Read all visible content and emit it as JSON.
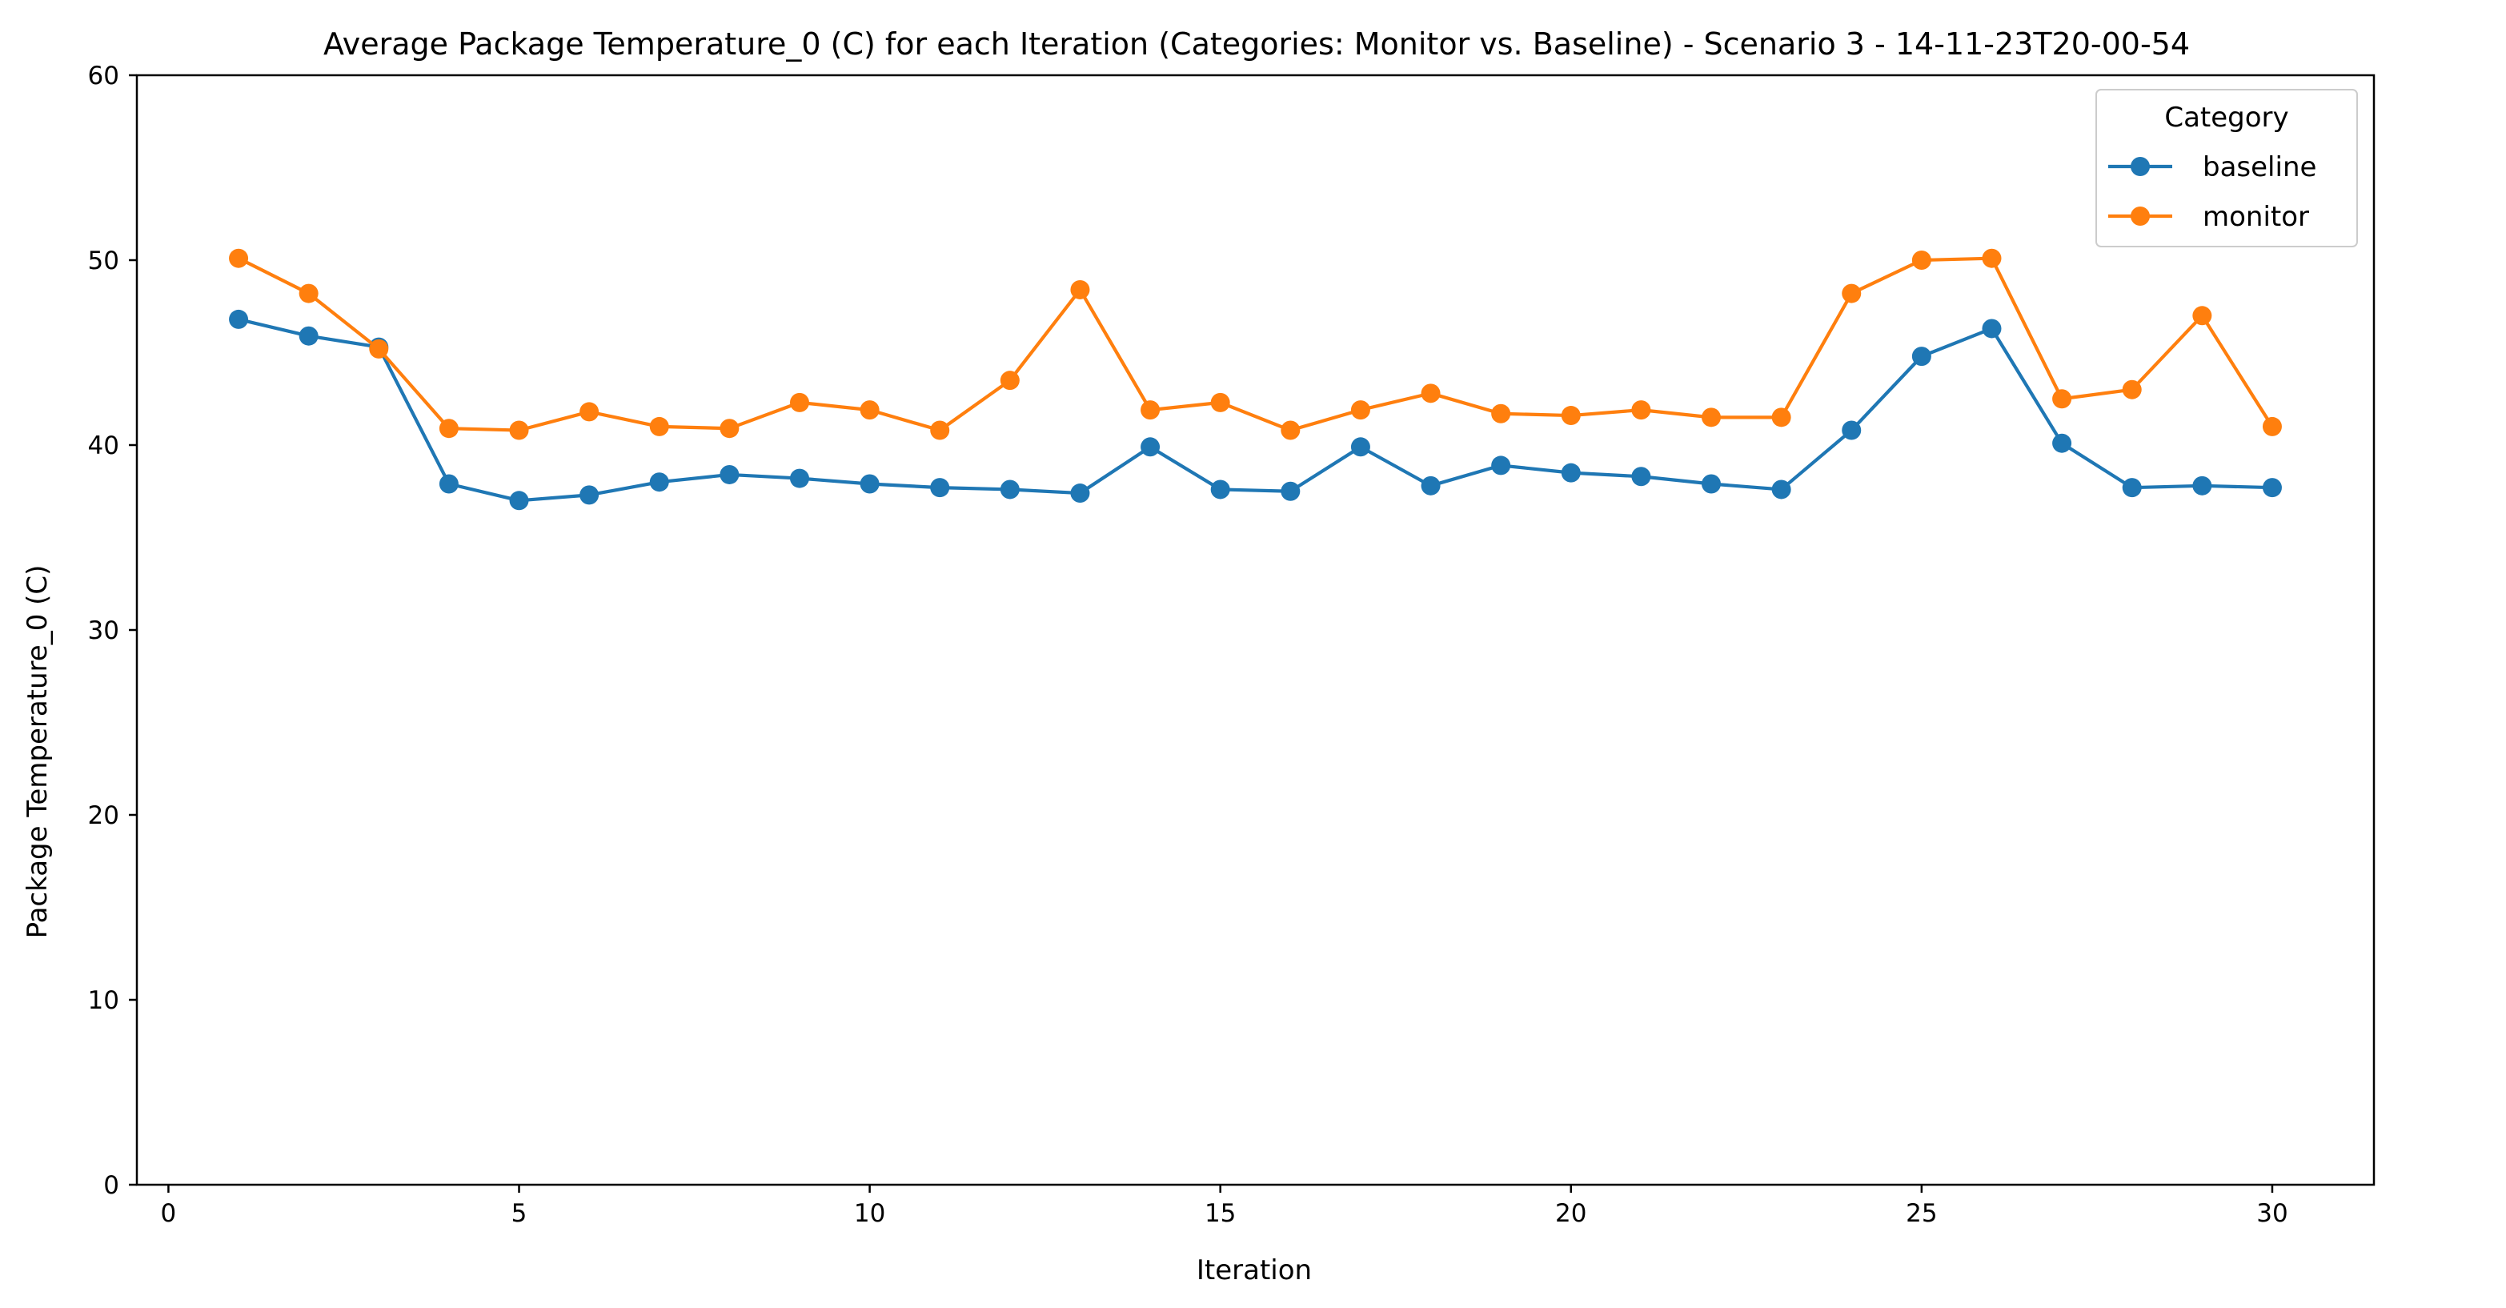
{
  "chart_data": {
    "type": "line",
    "title": "Average Package Temperature_0 (C) for each Iteration (Categories: Monitor vs. Baseline) - Scenario 3 - 14-11-23T20-00-54",
    "xlabel": "Iteration",
    "ylabel": "Package Temperature_0 (C)",
    "xlim": [
      -0.45,
      31.45
    ],
    "ylim": [
      0,
      60
    ],
    "xticks": [
      0,
      5,
      10,
      15,
      20,
      25,
      30
    ],
    "yticks": [
      0,
      10,
      20,
      30,
      40,
      50,
      60
    ],
    "grid": false,
    "legend": {
      "title": "Category",
      "placement": "top-right"
    },
    "x": [
      1,
      2,
      3,
      4,
      5,
      6,
      7,
      8,
      9,
      10,
      11,
      12,
      13,
      14,
      15,
      16,
      17,
      18,
      19,
      20,
      21,
      22,
      23,
      24,
      25,
      26,
      27,
      28,
      29,
      30
    ],
    "series": [
      {
        "name": "baseline",
        "color": "#1f77b4",
        "values": [
          46.8,
          45.9,
          45.3,
          37.9,
          37.0,
          37.3,
          38.0,
          38.4,
          38.2,
          37.9,
          37.7,
          37.6,
          37.4,
          39.9,
          37.6,
          37.5,
          39.9,
          37.8,
          38.9,
          38.5,
          38.3,
          37.9,
          37.6,
          40.8,
          44.8,
          46.3,
          40.1,
          37.7,
          37.8,
          37.7
        ]
      },
      {
        "name": "monitor",
        "color": "#ff7f0e",
        "values": [
          50.1,
          48.2,
          45.2,
          40.9,
          40.8,
          41.8,
          41.0,
          40.9,
          42.3,
          41.9,
          40.8,
          43.5,
          48.4,
          41.9,
          42.3,
          40.8,
          41.9,
          42.8,
          41.7,
          41.6,
          41.9,
          41.5,
          41.5,
          48.2,
          50.0,
          50.1,
          42.5,
          43.0,
          47.0,
          41.0
        ]
      }
    ]
  }
}
